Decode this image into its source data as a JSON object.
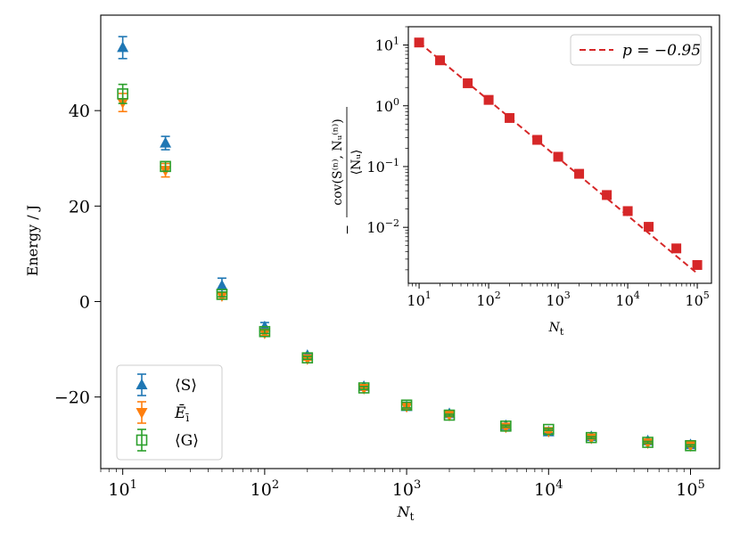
{
  "colors": {
    "S": "#1f77b4",
    "E": "#ff7f0e",
    "G": "#2ca02c",
    "inset": "#d62728"
  },
  "chart_data": [
    {
      "type": "scatter",
      "name": "main",
      "xscale": "log",
      "xlim": [
        7,
        160000
      ],
      "ylim": [
        -35,
        60
      ],
      "xlabel_base": "N",
      "xlabel_sub": "t",
      "ylabel": "Energy / J",
      "x_tick_labels": [
        {
          "base": "10",
          "exp": "1"
        },
        {
          "base": "10",
          "exp": "2"
        },
        {
          "base": "10",
          "exp": "3"
        },
        {
          "base": "10",
          "exp": "4"
        },
        {
          "base": "10",
          "exp": "5"
        }
      ],
      "y_ticks": [
        -20,
        0,
        20,
        40
      ],
      "y_tick_labels": [
        "−20",
        "0",
        "20",
        "40"
      ],
      "x": [
        10,
        20,
        50,
        100,
        200,
        500,
        1000,
        2000,
        5000,
        10000,
        20000,
        50000,
        100000
      ],
      "series": [
        {
          "key": "S",
          "name": "⟨S⟩",
          "marker": "triangle-up",
          "values": [
            53.2,
            33.2,
            3.3,
            -5.3,
            -11.3,
            -17.8,
            -22.0,
            -23.5,
            -26.0,
            -27.3,
            -28.3,
            -29.2,
            -30.0
          ],
          "errors": [
            2.3,
            1.4,
            1.6,
            0.9,
            0.4,
            0.3,
            0.5,
            0.3,
            0.3,
            0.3,
            0.2,
            0.2,
            0.2
          ]
        },
        {
          "key": "E",
          "name": "Ē",
          "marker": "triangle-down",
          "values": [
            41.7,
            27.5,
            1.2,
            -6.6,
            -12.0,
            -18.2,
            -22.0,
            -23.8,
            -26.3,
            -27.2,
            -28.6,
            -29.6,
            -30.2
          ],
          "errors": [
            1.9,
            1.4,
            0.6,
            0.5,
            0.3,
            0.3,
            0.4,
            0.3,
            0.2,
            0.2,
            0.2,
            0.2,
            0.2
          ]
        },
        {
          "key": "G",
          "name": "⟨G⟩",
          "marker": "square-open",
          "values": [
            43.5,
            28.3,
            1.5,
            -6.3,
            -11.8,
            -18.1,
            -21.7,
            -23.8,
            -26.1,
            -26.8,
            -28.5,
            -29.5,
            -30.2
          ],
          "errors": [
            2.0,
            1.0,
            0.5,
            0.4,
            0.3,
            0.3,
            0.6,
            0.2,
            0.2,
            0.2,
            0.2,
            0.2,
            0.2
          ]
        }
      ],
      "legend": {
        "position": "lower-left",
        "entries": [
          {
            "key": "S",
            "base": "⟨S⟩",
            "sub": ""
          },
          {
            "key": "E",
            "base": "Ē",
            "sub": "ī"
          },
          {
            "key": "G",
            "base": "⟨G⟩",
            "sub": ""
          }
        ]
      }
    },
    {
      "type": "line",
      "name": "inset",
      "xscale": "log",
      "yscale": "log",
      "xlim": [
        7,
        160000
      ],
      "ylim": [
        0.0012,
        20
      ],
      "xlabel_base": "N",
      "xlabel_sub": "t",
      "ylabel_numerator": "cov(S⁽ⁿ⁾, Nᵤ⁽ⁿ⁾)",
      "ylabel_denominator": "⟨Nᵤ⟩",
      "ylabel_sign": "−",
      "x_tick_labels": [
        {
          "base": "10",
          "exp": "1"
        },
        {
          "base": "10",
          "exp": "2"
        },
        {
          "base": "10",
          "exp": "3"
        },
        {
          "base": "10",
          "exp": "4"
        },
        {
          "base": "10",
          "exp": "5"
        }
      ],
      "y_tick_labels": [
        {
          "base": "10",
          "exp": "1"
        },
        {
          "base": "10",
          "exp": "0"
        },
        {
          "base": "10",
          "exp": "−1"
        },
        {
          "base": "10",
          "exp": "−2"
        }
      ],
      "x": [
        10,
        20,
        50,
        100,
        200,
        500,
        1000,
        2000,
        5000,
        10000,
        20000,
        50000,
        100000
      ],
      "values": [
        11.0,
        5.6,
        2.35,
        1.25,
        0.63,
        0.275,
        0.145,
        0.076,
        0.034,
        0.0185,
        0.0102,
        0.0045,
        0.0024
      ],
      "fit": {
        "p": -0.95,
        "x_from": 10,
        "x_to": 100000
      },
      "legend": {
        "position": "top-right",
        "label": "p = −0.95"
      }
    }
  ]
}
